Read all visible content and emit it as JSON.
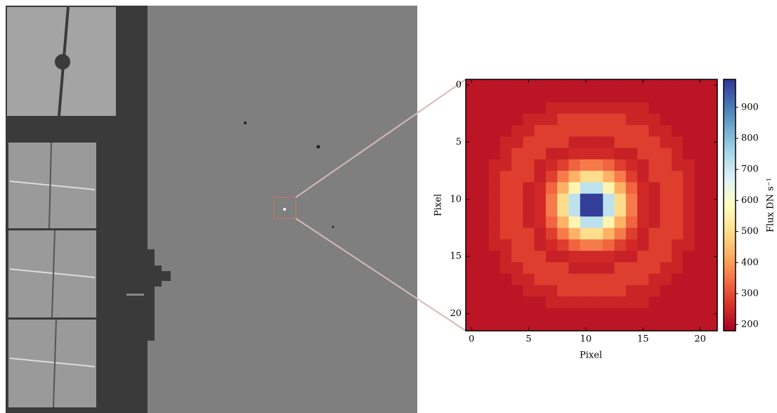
{
  "chart_data": {
    "type": "heatmap",
    "xlabel": "Pixel",
    "ylabel": "Pixel",
    "colorbar_label": "Flux  DN s⁻¹",
    "xlim": [
      -0.5,
      21.5
    ],
    "ylim": [
      21.5,
      -0.5
    ],
    "xticks": [
      0,
      5,
      10,
      15,
      20
    ],
    "yticks": [
      0,
      5,
      10,
      15,
      20
    ],
    "clim": [
      180,
      990
    ],
    "cticks": [
      200,
      300,
      400,
      500,
      600,
      700,
      800,
      900
    ],
    "colormap": [
      "#a50026",
      "#d73027",
      "#f46d43",
      "#fdae61",
      "#fee090",
      "#ffffbf",
      "#e0f3f8",
      "#abd9e9",
      "#74add1",
      "#4575b4",
      "#313695"
    ],
    "z": [
      [
        215,
        215,
        215,
        215,
        215,
        215,
        215,
        215,
        215,
        215,
        215,
        215,
        215,
        215,
        215,
        215,
        215,
        215,
        215,
        215,
        215,
        215
      ],
      [
        215,
        215,
        215,
        215,
        215,
        215,
        215,
        215,
        215,
        215,
        215,
        215,
        215,
        215,
        215,
        215,
        215,
        215,
        215,
        215,
        215,
        215
      ],
      [
        215,
        215,
        215,
        215,
        215,
        215,
        215,
        240,
        240,
        240,
        240,
        240,
        240,
        240,
        240,
        240,
        215,
        215,
        215,
        215,
        215,
        215
      ],
      [
        215,
        215,
        215,
        215,
        215,
        240,
        240,
        240,
        280,
        280,
        280,
        280,
        280,
        280,
        240,
        240,
        240,
        215,
        215,
        215,
        215,
        215
      ],
      [
        215,
        215,
        215,
        215,
        240,
        240,
        280,
        280,
        280,
        280,
        280,
        280,
        280,
        280,
        280,
        280,
        240,
        240,
        215,
        215,
        215,
        215
      ],
      [
        215,
        215,
        215,
        240,
        240,
        280,
        280,
        280,
        280,
        235,
        235,
        235,
        235,
        280,
        280,
        280,
        280,
        240,
        240,
        215,
        215,
        215
      ],
      [
        215,
        215,
        215,
        240,
        280,
        280,
        280,
        235,
        235,
        250,
        250,
        250,
        250,
        235,
        235,
        280,
        280,
        280,
        240,
        215,
        215,
        215
      ],
      [
        215,
        215,
        240,
        240,
        280,
        280,
        235,
        250,
        280,
        330,
        360,
        360,
        330,
        280,
        250,
        235,
        280,
        280,
        240,
        240,
        215,
        215
      ],
      [
        215,
        215,
        240,
        280,
        280,
        280,
        235,
        280,
        360,
        430,
        500,
        500,
        430,
        360,
        280,
        235,
        280,
        280,
        280,
        240,
        215,
        215
      ],
      [
        215,
        215,
        240,
        280,
        280,
        235,
        250,
        330,
        430,
        560,
        720,
        720,
        560,
        430,
        330,
        250,
        235,
        280,
        280,
        240,
        215,
        215
      ],
      [
        215,
        215,
        240,
        280,
        280,
        235,
        250,
        360,
        500,
        720,
        980,
        980,
        720,
        500,
        360,
        250,
        235,
        280,
        280,
        240,
        215,
        215
      ],
      [
        215,
        215,
        240,
        280,
        280,
        235,
        250,
        360,
        500,
        720,
        980,
        980,
        720,
        500,
        360,
        250,
        235,
        280,
        280,
        240,
        215,
        215
      ],
      [
        215,
        215,
        240,
        280,
        280,
        235,
        250,
        330,
        430,
        560,
        720,
        720,
        560,
        430,
        330,
        250,
        235,
        280,
        280,
        240,
        215,
        215
      ],
      [
        215,
        215,
        240,
        280,
        280,
        280,
        235,
        280,
        360,
        430,
        500,
        500,
        430,
        360,
        280,
        235,
        280,
        280,
        280,
        240,
        215,
        215
      ],
      [
        215,
        215,
        240,
        240,
        280,
        280,
        235,
        250,
        280,
        330,
        360,
        360,
        330,
        280,
        250,
        235,
        280,
        280,
        240,
        240,
        215,
        215
      ],
      [
        215,
        215,
        215,
        240,
        280,
        280,
        280,
        235,
        235,
        250,
        250,
        250,
        250,
        235,
        235,
        280,
        280,
        280,
        240,
        215,
        215,
        215
      ],
      [
        215,
        215,
        215,
        240,
        240,
        280,
        280,
        280,
        280,
        235,
        235,
        235,
        235,
        280,
        280,
        280,
        280,
        240,
        240,
        215,
        215,
        215
      ],
      [
        215,
        215,
        215,
        215,
        240,
        240,
        280,
        280,
        280,
        280,
        280,
        280,
        280,
        280,
        280,
        280,
        240,
        240,
        215,
        215,
        215,
        215
      ],
      [
        215,
        215,
        215,
        215,
        215,
        240,
        240,
        240,
        280,
        280,
        280,
        280,
        280,
        280,
        240,
        240,
        240,
        215,
        215,
        215,
        215,
        215
      ],
      [
        215,
        215,
        215,
        215,
        215,
        215,
        215,
        240,
        240,
        240,
        240,
        240,
        240,
        240,
        240,
        240,
        215,
        215,
        215,
        215,
        215,
        215
      ],
      [
        215,
        215,
        215,
        215,
        215,
        215,
        215,
        215,
        215,
        215,
        215,
        215,
        215,
        215,
        215,
        215,
        215,
        215,
        215,
        215,
        215,
        215
      ],
      [
        215,
        215,
        215,
        215,
        215,
        215,
        215,
        215,
        215,
        215,
        215,
        215,
        215,
        215,
        215,
        215,
        215,
        215,
        215,
        215,
        215,
        215
      ]
    ]
  }
}
